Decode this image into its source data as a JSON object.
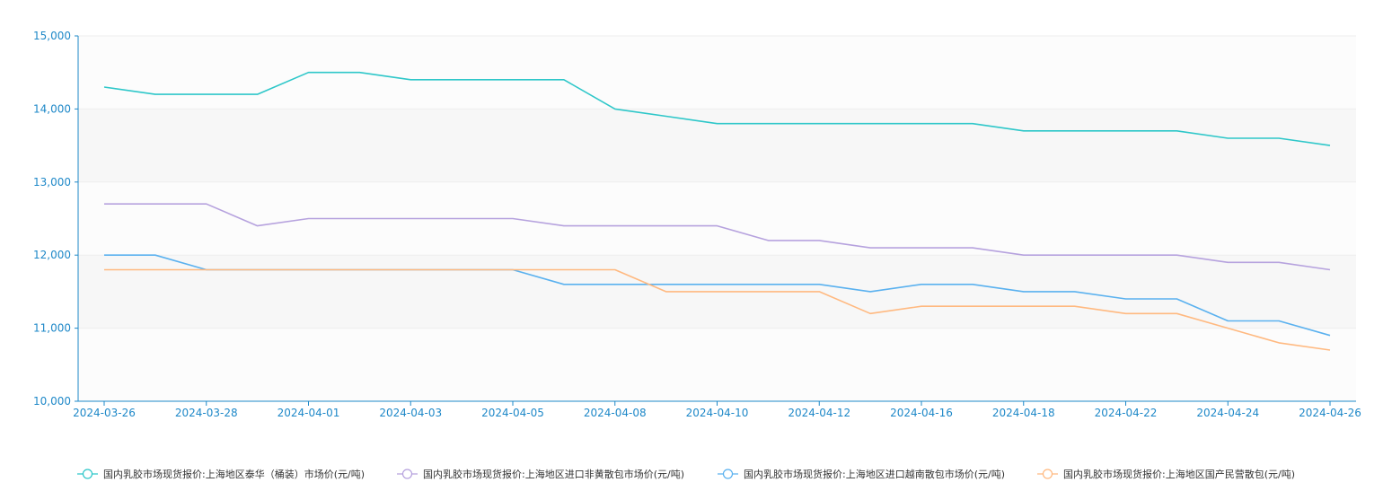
{
  "chart_data": {
    "type": "line",
    "title": "",
    "xlabel": "",
    "ylabel": "",
    "ylim": [
      10000,
      15000
    ],
    "yticks": [
      "15,000",
      "14,000",
      "13,000",
      "12,000",
      "11,000",
      "10,000"
    ],
    "ytick_values": [
      15000,
      14000,
      13000,
      12000,
      11000,
      10000
    ],
    "x": [
      "2024-03-26",
      "2024-03-27",
      "2024-03-28",
      "2024-03-29",
      "2024-04-01",
      "2024-04-02",
      "2024-04-03",
      "2024-04-04",
      "2024-04-05",
      "2024-04-07",
      "2024-04-08",
      "2024-04-09",
      "2024-04-10",
      "2024-04-11",
      "2024-04-12",
      "2024-04-15",
      "2024-04-16",
      "2024-04-17",
      "2024-04-18",
      "2024-04-19",
      "2024-04-22",
      "2024-04-23",
      "2024-04-24",
      "2024-04-25",
      "2024-04-26"
    ],
    "xtick_labels": [
      "2024-03-26",
      "2024-03-28",
      "2024-04-01",
      "2024-04-03",
      "2024-04-05",
      "2024-04-08",
      "2024-04-10",
      "2024-04-12",
      "2024-04-16",
      "2024-04-18",
      "2024-04-22",
      "2024-04-24",
      "2024-04-26"
    ],
    "grid": true,
    "legend_position": "bottom",
    "series": [
      {
        "name": "国内乳胶市场现货报价:上海地区泰华（桶装）市场价(元/吨)",
        "color": "#2ec7c9",
        "values": [
          14300,
          14200,
          14200,
          14200,
          14500,
          14500,
          14400,
          14400,
          14400,
          14400,
          14000,
          13900,
          13800,
          13800,
          13800,
          13800,
          13800,
          13800,
          13700,
          13700,
          13700,
          13700,
          13600,
          13600,
          13500
        ]
      },
      {
        "name": "国内乳胶市场现货报价:上海地区进口非黄散包市场价(元/吨)",
        "color": "#b6a2de",
        "values": [
          12700,
          12700,
          12700,
          12400,
          12500,
          12500,
          12500,
          12500,
          12500,
          12400,
          12400,
          12400,
          12400,
          12200,
          12200,
          12100,
          12100,
          12100,
          12000,
          12000,
          12000,
          12000,
          11900,
          11900,
          11800
        ]
      },
      {
        "name": "国内乳胶市场现货报价:上海地区进口越南散包市场价(元/吨)",
        "color": "#5ab1ef",
        "values": [
          12000,
          12000,
          11800,
          11800,
          11800,
          11800,
          11800,
          11800,
          11800,
          11600,
          11600,
          11600,
          11600,
          11600,
          11600,
          11500,
          11600,
          11600,
          11500,
          11500,
          11400,
          11400,
          11100,
          11100,
          10900
        ]
      },
      {
        "name": "国内乳胶市场现货报价:上海地区国产民营散包(元/吨)",
        "color": "#ffb980",
        "values": [
          11800,
          11800,
          11800,
          11800,
          11800,
          11800,
          11800,
          11800,
          11800,
          11800,
          11800,
          11500,
          11500,
          11500,
          11500,
          11200,
          11300,
          11300,
          11300,
          11300,
          11200,
          11200,
          11000,
          10800,
          10700
        ]
      }
    ]
  }
}
